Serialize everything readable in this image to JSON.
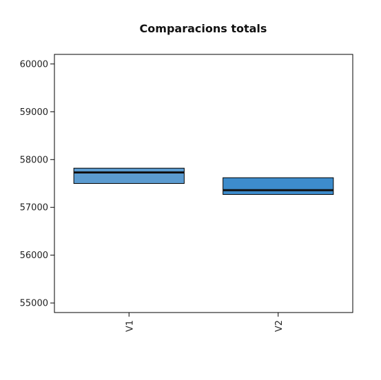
{
  "chart_data": {
    "type": "boxplot",
    "title": "Comparacions totals",
    "xlabel": "",
    "ylabel": "",
    "categories": [
      "V1",
      "V2"
    ],
    "boxes": [
      {
        "name": "V1",
        "q1": 57500,
        "median": 57730,
        "q3": 57820,
        "fill": "#5b9bd0"
      },
      {
        "name": "V2",
        "q1": 57270,
        "median": 57360,
        "q3": 57620,
        "fill": "#3d8ccc"
      }
    ],
    "ylim": [
      54800,
      60200
    ],
    "yticks": [
      55000,
      56000,
      57000,
      58000,
      59000,
      60000
    ],
    "grid": false,
    "legend": "none",
    "colors": {
      "frame": "#000000",
      "median": "#111111",
      "text": "#222222"
    }
  }
}
